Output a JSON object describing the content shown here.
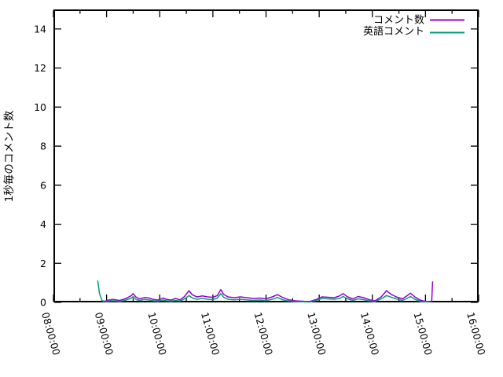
{
  "chart_data": {
    "type": "line",
    "title": "",
    "xlabel": "",
    "ylabel": "1秒毎のコメント数",
    "ylim": [
      0,
      15
    ],
    "yticks": [
      0,
      2,
      4,
      6,
      8,
      10,
      12,
      14
    ],
    "xtick_labels": [
      "08:00:00",
      "09:00:00",
      "10:00:00",
      "11:00:00",
      "12:00:00",
      "13:00:00",
      "14:00:00",
      "15:00:00",
      "16:00:00"
    ],
    "x_start_hour": 8,
    "x_end_hour": 16,
    "minor_xtick_minutes": 30,
    "grid": false,
    "legend_position": "top-right-inside",
    "axis_color": "#000000",
    "background_color": "#ffffff",
    "series": [
      {
        "name": "コメント数",
        "color": "#9400d3",
        "points_unit": "minutes after 08:00, comments per second",
        "points": [
          [
            57,
            0.04
          ],
          [
            60,
            0.1
          ],
          [
            67,
            0.15
          ],
          [
            75,
            0.1
          ],
          [
            82,
            0.2
          ],
          [
            88,
            0.35
          ],
          [
            90,
            0.45
          ],
          [
            93,
            0.28
          ],
          [
            97,
            0.18
          ],
          [
            103,
            0.25
          ],
          [
            108,
            0.22
          ],
          [
            113,
            0.15
          ],
          [
            118,
            0.12
          ],
          [
            124,
            0.22
          ],
          [
            128,
            0.15
          ],
          [
            133,
            0.12
          ],
          [
            138,
            0.2
          ],
          [
            143,
            0.13
          ],
          [
            148,
            0.3
          ],
          [
            153,
            0.6
          ],
          [
            157,
            0.38
          ],
          [
            162,
            0.28
          ],
          [
            168,
            0.33
          ],
          [
            174,
            0.28
          ],
          [
            180,
            0.26
          ],
          [
            185,
            0.35
          ],
          [
            189,
            0.65
          ],
          [
            192,
            0.42
          ],
          [
            197,
            0.28
          ],
          [
            204,
            0.24
          ],
          [
            211,
            0.28
          ],
          [
            218,
            0.24
          ],
          [
            226,
            0.2
          ],
          [
            233,
            0.22
          ],
          [
            240,
            0.18
          ],
          [
            247,
            0.28
          ],
          [
            253,
            0.4
          ],
          [
            259,
            0.24
          ],
          [
            266,
            0.13
          ],
          [
            273,
            0.08
          ],
          [
            281,
            0.06
          ],
          [
            289,
            0.04
          ],
          [
            296,
            0.14
          ],
          [
            303,
            0.28
          ],
          [
            310,
            0.26
          ],
          [
            317,
            0.24
          ],
          [
            323,
            0.33
          ],
          [
            327,
            0.45
          ],
          [
            332,
            0.28
          ],
          [
            338,
            0.18
          ],
          [
            344,
            0.3
          ],
          [
            350,
            0.24
          ],
          [
            357,
            0.13
          ],
          [
            363,
            0.08
          ],
          [
            370,
            0.28
          ],
          [
            376,
            0.6
          ],
          [
            381,
            0.42
          ],
          [
            387,
            0.28
          ],
          [
            394,
            0.18
          ],
          [
            399,
            0.33
          ],
          [
            403,
            0.47
          ],
          [
            408,
            0.28
          ],
          [
            414,
            0.12
          ],
          [
            420,
            0.05
          ],
          [
            425,
            0.04
          ],
          [
            427,
            0.06
          ],
          [
            428,
            1.05
          ]
        ]
      },
      {
        "name": "英語コメント",
        "color": "#009e73",
        "points_unit": "minutes after 08:00, comments per second",
        "points": [
          [
            50,
            1.1
          ],
          [
            52,
            0.45
          ],
          [
            55,
            0.08
          ],
          [
            60,
            0.05
          ],
          [
            67,
            0.08
          ],
          [
            75,
            0.05
          ],
          [
            82,
            0.12
          ],
          [
            88,
            0.22
          ],
          [
            90,
            0.3
          ],
          [
            93,
            0.16
          ],
          [
            97,
            0.1
          ],
          [
            103,
            0.15
          ],
          [
            108,
            0.12
          ],
          [
            113,
            0.08
          ],
          [
            118,
            0.06
          ],
          [
            124,
            0.12
          ],
          [
            128,
            0.08
          ],
          [
            133,
            0.06
          ],
          [
            138,
            0.1
          ],
          [
            143,
            0.07
          ],
          [
            148,
            0.18
          ],
          [
            153,
            0.35
          ],
          [
            157,
            0.22
          ],
          [
            162,
            0.16
          ],
          [
            168,
            0.2
          ],
          [
            174,
            0.16
          ],
          [
            180,
            0.14
          ],
          [
            185,
            0.22
          ],
          [
            189,
            0.45
          ],
          [
            192,
            0.27
          ],
          [
            197,
            0.16
          ],
          [
            204,
            0.13
          ],
          [
            211,
            0.16
          ],
          [
            218,
            0.13
          ],
          [
            226,
            0.1
          ],
          [
            233,
            0.12
          ],
          [
            240,
            0.09
          ],
          [
            247,
            0.16
          ],
          [
            253,
            0.25
          ],
          [
            259,
            0.13
          ],
          [
            266,
            0.07
          ],
          [
            273,
            0.04
          ],
          [
            281,
            0.03
          ],
          [
            289,
            0.02
          ],
          [
            296,
            0.09
          ],
          [
            303,
            0.2
          ],
          [
            310,
            0.18
          ],
          [
            317,
            0.16
          ],
          [
            323,
            0.2
          ],
          [
            327,
            0.3
          ],
          [
            332,
            0.18
          ],
          [
            338,
            0.1
          ],
          [
            344,
            0.18
          ],
          [
            350,
            0.14
          ],
          [
            357,
            0.07
          ],
          [
            363,
            0.04
          ],
          [
            370,
            0.18
          ],
          [
            376,
            0.35
          ],
          [
            381,
            0.27
          ],
          [
            387,
            0.18
          ],
          [
            394,
            0.1
          ],
          [
            399,
            0.2
          ],
          [
            403,
            0.3
          ],
          [
            408,
            0.16
          ],
          [
            414,
            0.06
          ],
          [
            420,
            0.03
          ],
          [
            424,
            0.02
          ]
        ]
      }
    ]
  }
}
